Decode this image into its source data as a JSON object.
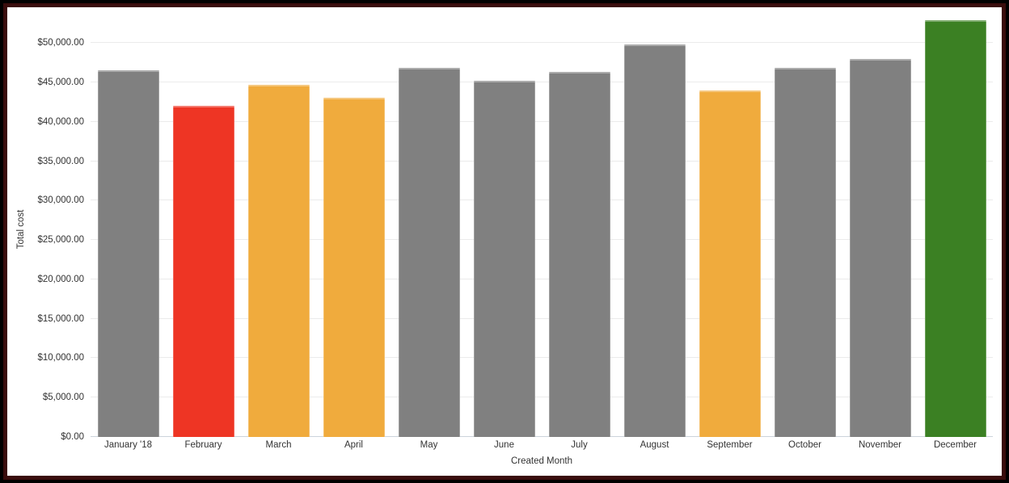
{
  "frame": {
    "outer_color": "#000000",
    "inner_color": "#3a0c0c",
    "background": "#ffffff"
  },
  "chart_data": {
    "type": "bar",
    "title": "",
    "xlabel": "Created Month",
    "ylabel": "Total cost",
    "legend_position": "none",
    "grid": true,
    "categories": [
      "January '18",
      "February",
      "March",
      "April",
      "May",
      "June",
      "July",
      "August",
      "September",
      "October",
      "November",
      "December"
    ],
    "values": [
      46500,
      42000,
      44700,
      43100,
      46900,
      45200,
      46300,
      49800,
      44000,
      46900,
      48000,
      52900
    ],
    "bar_colors": [
      "#808080",
      "#ee3524",
      "#f0ab3d",
      "#f0ab3d",
      "#808080",
      "#808080",
      "#808080",
      "#808080",
      "#f0ab3d",
      "#808080",
      "#808080",
      "#3b8023"
    ],
    "y_axis": {
      "min": 0,
      "max": 52900,
      "tick_step": 5000,
      "tick_values": [
        0,
        5000,
        10000,
        15000,
        20000,
        25000,
        30000,
        35000,
        40000,
        45000,
        50000
      ],
      "tick_labels": [
        "$0.00",
        "$5,000.00",
        "$10,000.00",
        "$15,000.00",
        "$20,000.00",
        "$25,000.00",
        "$30,000.00",
        "$35,000.00",
        "$40,000.00",
        "$45,000.00",
        "$50,000.00"
      ]
    },
    "colors": {
      "gridline": "#ebebeb",
      "baseline": "#ccd3db",
      "label_text": "#333333"
    }
  }
}
